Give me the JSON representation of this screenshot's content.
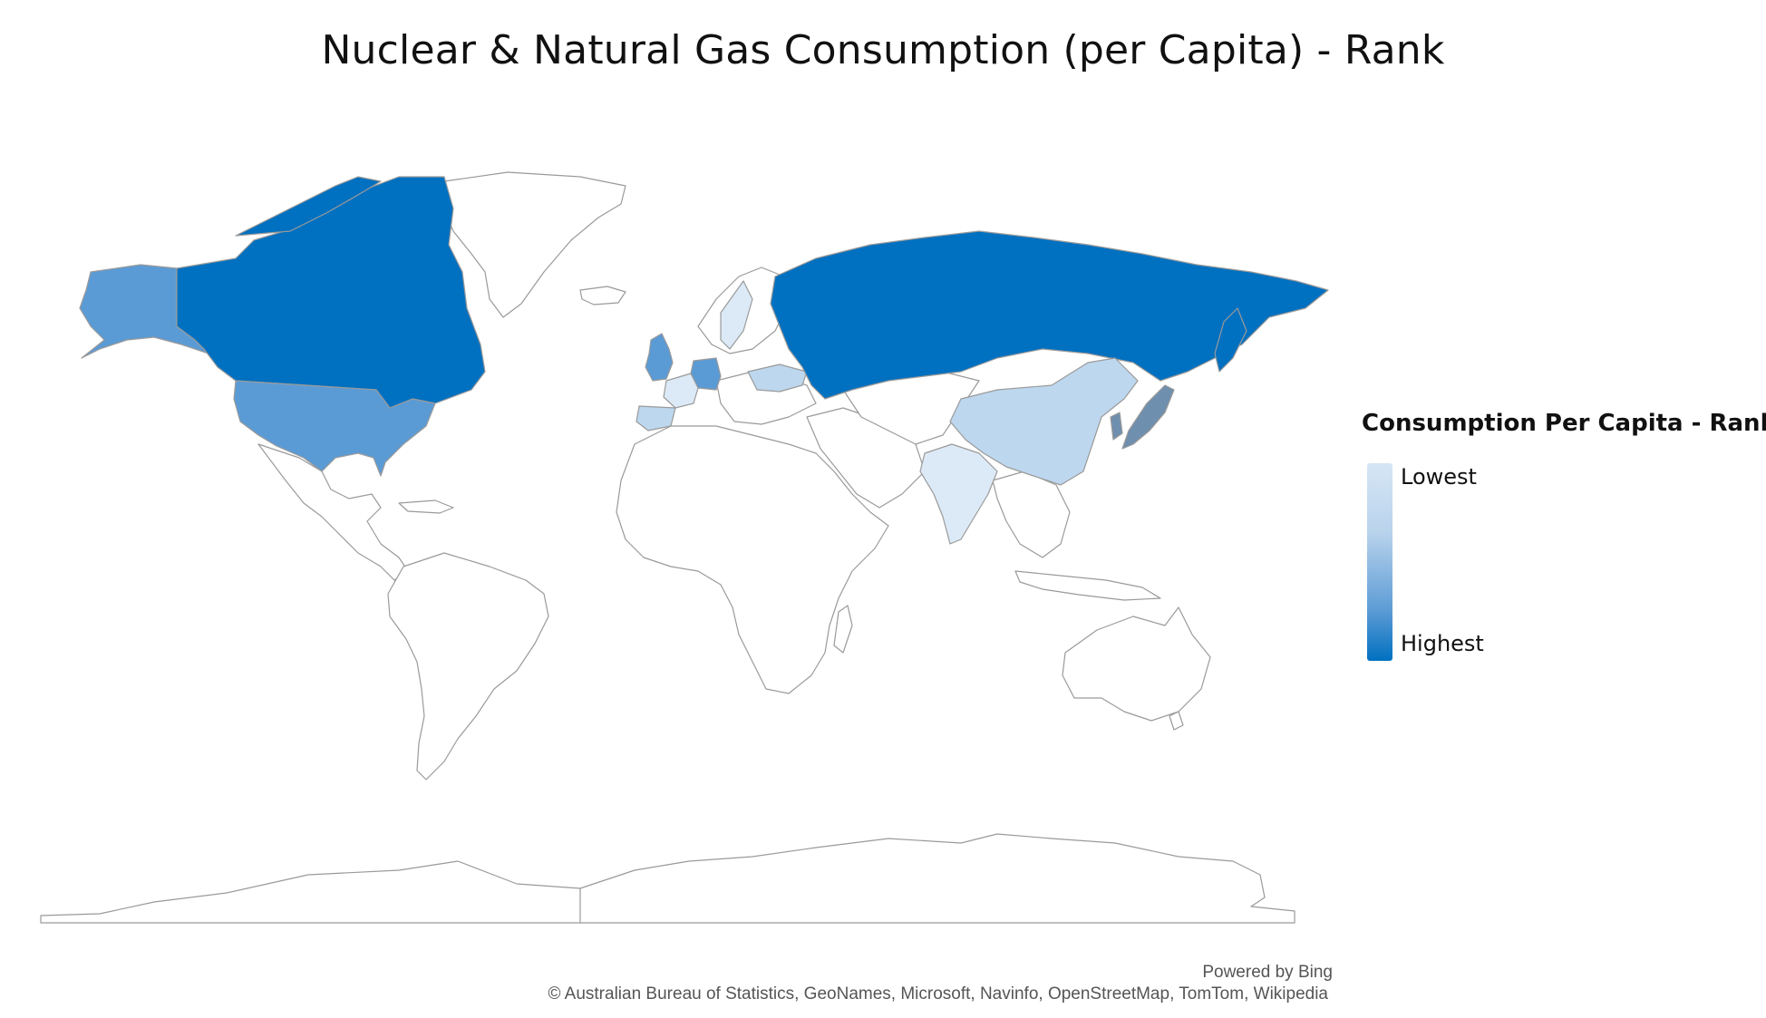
{
  "title": "Nuclear & Natural Gas Consumption (per Capita) - Rank",
  "legend": {
    "title": "Consumption Per Capita - Rank",
    "low_label": "Lowest",
    "high_label": "Highest",
    "colors": {
      "lowest": "#dceaf7",
      "low": "#bdd7ee",
      "mid": "#5b9bd5",
      "high": "#0070c0",
      "alt": "#6f8fae"
    }
  },
  "attribution": {
    "powered_by": "Powered by Bing",
    "copyright": "© Australian Bureau of Statistics, GeoNames, Microsoft, Navinfo, OpenStreetMap, TomTom, Wikipedia"
  },
  "chart_data": {
    "type": "choropleth",
    "scale": [
      "Lowest",
      "Highest"
    ],
    "shaded_regions": [
      {
        "region": "Canada",
        "shade": "high"
      },
      {
        "region": "Russia",
        "shade": "high"
      },
      {
        "region": "United States",
        "shade": "mid"
      },
      {
        "region": "Alaska",
        "shade": "mid"
      },
      {
        "region": "Germany",
        "shade": "mid"
      },
      {
        "region": "United Kingdom",
        "shade": "mid"
      },
      {
        "region": "Japan",
        "shade": "alt"
      },
      {
        "region": "China",
        "shade": "low"
      },
      {
        "region": "Ukraine",
        "shade": "low"
      },
      {
        "region": "Spain",
        "shade": "low"
      },
      {
        "region": "France",
        "shade": "lowest"
      },
      {
        "region": "Sweden",
        "shade": "lowest"
      },
      {
        "region": "India",
        "shade": "lowest"
      }
    ]
  }
}
